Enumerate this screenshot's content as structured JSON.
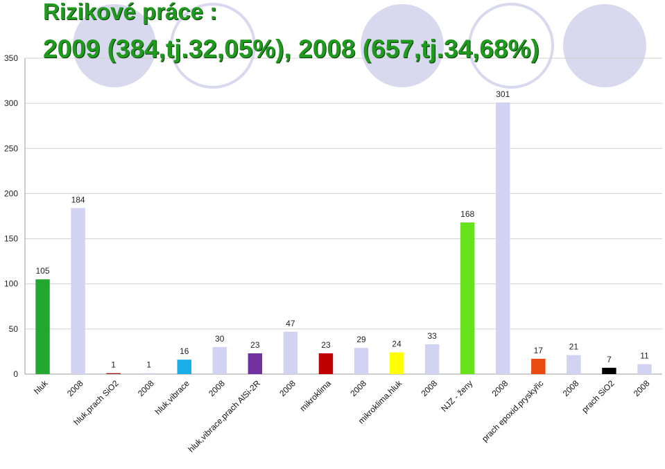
{
  "title": {
    "line1": "Rizikové práce :",
    "line2": "2009 (384,tj.32,05%), 2008 (657,tj.34,68%)"
  },
  "decor": {
    "circle_fill": "#d8d8ee",
    "circle_stroke": "#d8d8ee"
  },
  "chart_data": {
    "type": "bar",
    "categories": [
      "hluk",
      "2008",
      "hluk,prach SiO2",
      "2008",
      "hluk,vibrace",
      "2008",
      "hluk,vibrace,prach AlSi-2R",
      "2008",
      "mikroklima",
      "2008",
      "mikroklima,hluk",
      "2008",
      "NJZ - ženy",
      "2008",
      "prach epoxid.pryskyřic",
      "2008",
      "prach SiO2",
      "2008"
    ],
    "values": [
      105,
      184,
      1,
      1,
      16,
      30,
      23,
      47,
      23,
      29,
      24,
      33,
      168,
      301,
      17,
      21,
      7,
      11
    ],
    "colors": [
      "#22a82e",
      "#d2d2f2",
      "#a01010",
      "#d2d2f2",
      "#19aee8",
      "#d2d2f2",
      "#7030a0",
      "#d2d2f2",
      "#c00000",
      "#d2d2f2",
      "#ffff00",
      "#d2d2f2",
      "#66e21a",
      "#d2d2f2",
      "#ea4a10",
      "#d2d2f2",
      "#000000",
      "#d2d2f2"
    ],
    "ylim": [
      0,
      350
    ],
    "yticks": [
      "0",
      "50",
      "100",
      "150",
      "200",
      "250",
      "300",
      "350"
    ],
    "grid": true,
    "title": "",
    "xlabel": "",
    "ylabel": ""
  }
}
